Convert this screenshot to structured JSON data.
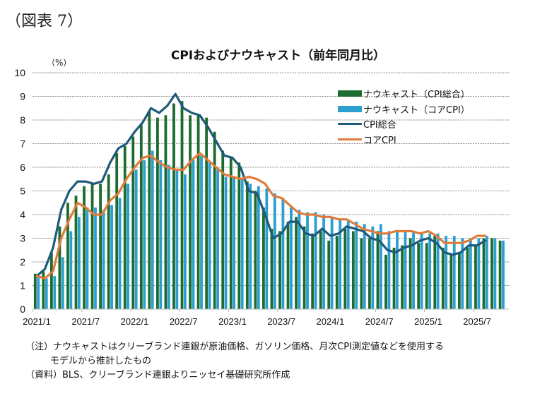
{
  "figure_label": "（図表 7）",
  "chart_data": {
    "type": "bar",
    "title": "CPIおよびナウキャスト（前年同月比）",
    "ylabel": "（%）",
    "xlabel": "",
    "ylim": [
      0,
      10
    ],
    "yticks": [
      0,
      1,
      2,
      3,
      4,
      5,
      6,
      7,
      8,
      9,
      10
    ],
    "grid": true,
    "legend_position": "top-right",
    "x_start": "2021/1",
    "x_tick_labels": [
      "2021/1",
      "2021/7",
      "2022/1",
      "2022/7",
      "2023/1",
      "2023/7",
      "2024/1",
      "2024/7",
      "2025/1",
      "2025/7"
    ],
    "months": [
      "2021/1",
      "2021/2",
      "2021/3",
      "2021/4",
      "2021/5",
      "2021/6",
      "2021/7",
      "2021/8",
      "2021/9",
      "2021/10",
      "2021/11",
      "2021/12",
      "2022/1",
      "2022/2",
      "2022/3",
      "2022/4",
      "2022/5",
      "2022/6",
      "2022/7",
      "2022/8",
      "2022/9",
      "2022/10",
      "2022/11",
      "2022/12",
      "2023/1",
      "2023/2",
      "2023/3",
      "2023/4",
      "2023/5",
      "2023/6",
      "2023/7",
      "2023/8",
      "2023/9",
      "2023/10",
      "2023/11",
      "2023/12",
      "2024/1",
      "2024/2",
      "2024/3",
      "2024/4",
      "2024/5",
      "2024/6",
      "2024/7",
      "2024/8",
      "2024/9",
      "2024/10",
      "2024/11",
      "2024/12",
      "2025/1",
      "2025/2",
      "2025/3",
      "2025/4",
      "2025/5",
      "2025/6",
      "2025/7",
      "2025/8",
      "2025/9",
      "2025/10"
    ],
    "series": [
      {
        "name": "ナウキャスト（CPI総合）",
        "kind": "bar",
        "color": "#1e6b2f",
        "values": [
          1.5,
          1.6,
          2.4,
          3.5,
          4.5,
          4.8,
          5.2,
          5.3,
          5.3,
          5.7,
          6.6,
          6.9,
          7.3,
          7.8,
          8.4,
          8.1,
          8.2,
          8.7,
          8.8,
          8.2,
          8.2,
          8.1,
          7.5,
          6.7,
          6.4,
          6.2,
          5.4,
          5.0,
          4.3,
          3.4,
          3.3,
          3.7,
          3.9,
          3.5,
          3.2,
          3.3,
          2.9,
          3.1,
          3.4,
          3.3,
          3.0,
          3.0,
          3.3,
          2.3,
          2.6,
          2.7,
          3.0,
          2.8,
          2.8,
          3.1,
          2.6,
          2.3,
          2.4,
          2.6,
          2.7,
          3.0,
          3.0,
          2.9
        ]
      },
      {
        "name": "ナウキャスト（コアCPI）",
        "kind": "bar",
        "color": "#2a9fd0",
        "values": [
          1.4,
          1.3,
          1.4,
          2.2,
          3.3,
          3.9,
          4.3,
          4.3,
          4.2,
          4.4,
          4.7,
          5.3,
          5.9,
          6.3,
          6.7,
          6.3,
          6.1,
          5.9,
          5.7,
          6.3,
          6.5,
          6.2,
          5.9,
          5.6,
          5.6,
          5.5,
          5.3,
          5.2,
          5.1,
          4.9,
          4.7,
          4.3,
          4.2,
          4.1,
          4.1,
          4.0,
          3.9,
          3.8,
          3.8,
          3.7,
          3.6,
          3.5,
          3.6,
          3.3,
          3.3,
          3.3,
          3.3,
          3.2,
          3.2,
          3.2,
          3.1,
          3.1,
          3.0,
          3.0,
          3.0,
          3.1,
          3.0,
          2.9
        ]
      },
      {
        "name": "CPI総合",
        "kind": "line",
        "color": "#1f5a7a",
        "values": [
          1.4,
          1.7,
          2.6,
          4.2,
          5.0,
          5.4,
          5.4,
          5.3,
          5.4,
          6.2,
          6.8,
          7.0,
          7.5,
          7.9,
          8.5,
          8.3,
          8.6,
          9.1,
          8.5,
          8.3,
          8.2,
          7.7,
          7.1,
          6.5,
          6.4,
          6.0,
          5.0,
          4.9,
          4.0,
          3.0,
          3.2,
          3.7,
          3.7,
          3.2,
          3.1,
          3.4,
          3.1,
          3.2,
          3.5,
          3.4,
          3.3,
          3.0,
          2.9,
          2.5,
          2.4,
          2.6,
          2.7,
          2.9,
          3.0,
          2.8,
          2.4,
          2.3,
          2.4,
          2.7,
          2.7,
          2.9,
          null,
          null
        ]
      },
      {
        "name": "コアCPI",
        "kind": "line",
        "color": "#e07b3c",
        "values": [
          1.4,
          1.3,
          1.6,
          3.0,
          3.8,
          4.5,
          4.3,
          4.0,
          4.0,
          4.6,
          4.9,
          5.5,
          6.0,
          6.4,
          6.5,
          6.2,
          6.0,
          5.9,
          5.9,
          6.3,
          6.6,
          6.3,
          6.0,
          5.7,
          5.6,
          5.5,
          5.6,
          5.5,
          5.3,
          4.8,
          4.7,
          4.4,
          4.1,
          4.0,
          4.0,
          3.9,
          3.9,
          3.8,
          3.8,
          3.6,
          3.4,
          3.3,
          3.2,
          3.2,
          3.3,
          3.3,
          3.3,
          3.2,
          3.3,
          3.1,
          2.8,
          2.8,
          2.8,
          2.9,
          3.1,
          3.1,
          null,
          null
        ]
      }
    ]
  },
  "notes": {
    "note_line1": "（注）ナウキャストはクリーブランド連銀が原油価格、ガソリン価格、月次CPI測定値などを使用する",
    "note_line2": "モデルから推計したもの",
    "source": "（資料）BLS、クリーブランド連銀よりニッセイ基礎研究所作成"
  }
}
